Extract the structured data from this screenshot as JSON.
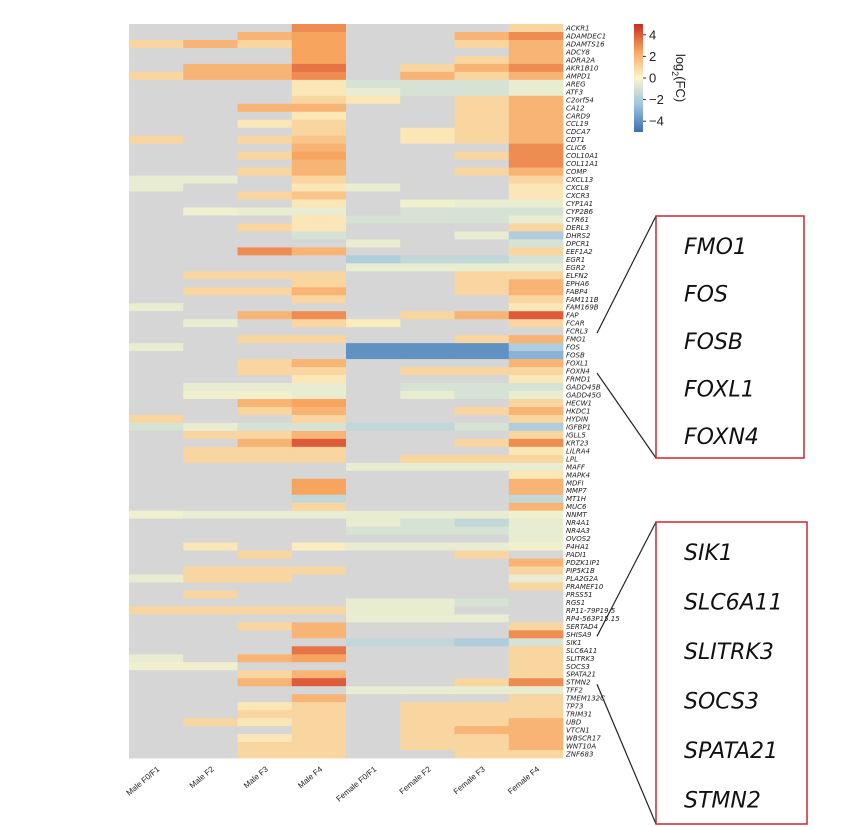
{
  "chart_data": {
    "type": "heatmap",
    "columns": [
      "Male F0/F1",
      "Male F2",
      "Male F3",
      "Male F4",
      "Female F0/F1",
      "Female F2",
      "Female F3",
      "Female F4"
    ],
    "rows": [
      "ACKR1",
      "ADAMDEC1",
      "ADAMTS16",
      "ADCY8",
      "ADRA2A",
      "AKR1B10",
      "AMPD1",
      "AREG",
      "ATF3",
      "C2orf54",
      "CA12",
      "CARD9",
      "CCL19",
      "CDCA7",
      "CDT1",
      "CLIC6",
      "COL10A1",
      "COL11A1",
      "COMP",
      "CXCL13",
      "CXCL8",
      "CXCR3",
      "CYP1A1",
      "CYP2B6",
      "CYR61",
      "DERL3",
      "DHRS2",
      "DPCR1",
      "EEF1A2",
      "EGR1",
      "EGR2",
      "ELFN2",
      "EPHA6",
      "FABP4",
      "FAM111B",
      "FAM169B",
      "FAP",
      "FCAR",
      "FCRL3",
      "FMO1",
      "FOS",
      "FOSB",
      "FOXL1",
      "FOXN4",
      "FRMD1",
      "GADD45B",
      "GADD45G",
      "HECW1",
      "HKDC1",
      "HYDIN",
      "IGFBP1",
      "IGLL5",
      "KRT23",
      "LILRA4",
      "LPL",
      "MAFF",
      "MAPK4",
      "MDFI",
      "MMP7",
      "MT1H",
      "MUC6",
      "NNMT",
      "NR4A1",
      "NR4A3",
      "OVOS2",
      "P4HA1",
      "PADI1",
      "PDZK1IP1",
      "PIP5K1B",
      "PLA2G2A",
      "PRAMEF10",
      "PRSS51",
      "RGS1",
      "RP11-79P19.5",
      "RP4-563P15.15",
      "SERTAD4",
      "SHISA9",
      "SIK1",
      "SLC6A11",
      "SLITRK3",
      "SOCS3",
      "SPATA21",
      "STMN2",
      "TFF2",
      "TMEM132C",
      "TP73",
      "TRIM31",
      "UBD",
      "VTCN1",
      "WBSCR17",
      "WNT10A",
      "ZNF683"
    ],
    "values": [
      [
        null,
        null,
        null,
        3,
        null,
        null,
        null,
        1
      ],
      [
        null,
        null,
        2,
        2.5,
        null,
        null,
        2,
        3
      ],
      [
        1,
        2,
        1,
        2.5,
        null,
        null,
        1,
        2
      ],
      [
        null,
        null,
        null,
        2.5,
        null,
        null,
        null,
        2
      ],
      [
        null,
        null,
        null,
        2.5,
        null,
        null,
        1,
        2
      ],
      [
        null,
        2,
        2,
        3.5,
        null,
        1,
        2,
        3
      ],
      [
        1,
        2,
        2,
        3,
        null,
        2,
        1,
        2
      ],
      [
        null,
        null,
        null,
        0.5,
        -1,
        -1,
        -1,
        -0.5
      ],
      [
        null,
        null,
        null,
        0.5,
        -0.5,
        -1,
        -1,
        -0.5
      ],
      [
        null,
        null,
        null,
        1,
        0.5,
        null,
        1,
        2
      ],
      [
        null,
        null,
        2,
        2,
        null,
        null,
        1,
        2
      ],
      [
        null,
        null,
        null,
        0.5,
        null,
        null,
        1,
        2
      ],
      [
        null,
        null,
        0.5,
        1,
        null,
        null,
        1,
        2
      ],
      [
        null,
        null,
        null,
        1,
        null,
        0.5,
        1,
        2
      ],
      [
        1,
        null,
        1,
        1.5,
        null,
        0.5,
        1,
        2
      ],
      [
        null,
        null,
        null,
        2,
        null,
        null,
        null,
        3
      ],
      [
        null,
        null,
        1,
        2.5,
        null,
        null,
        1,
        3
      ],
      [
        null,
        null,
        null,
        2,
        null,
        null,
        null,
        3
      ],
      [
        null,
        null,
        1,
        2,
        null,
        null,
        1,
        2
      ],
      [
        -0.5,
        -0.5,
        null,
        1,
        null,
        null,
        null,
        1
      ],
      [
        -0.5,
        null,
        null,
        0.5,
        -0.5,
        null,
        null,
        0.5
      ],
      [
        null,
        null,
        1,
        1.5,
        null,
        null,
        null,
        0.5
      ],
      [
        null,
        null,
        null,
        0.5,
        null,
        -0.3,
        -0.5,
        -0.5
      ],
      [
        null,
        -0.3,
        -0.5,
        -0.5,
        null,
        -1,
        -1,
        -1
      ],
      [
        null,
        null,
        null,
        0.5,
        -1,
        -1,
        -1,
        -0.5
      ],
      [
        null,
        null,
        1,
        0.5,
        null,
        null,
        null,
        1
      ],
      [
        null,
        null,
        null,
        -1,
        null,
        null,
        -0.5,
        -2
      ],
      [
        null,
        null,
        null,
        null,
        -0.5,
        null,
        null,
        -1
      ],
      [
        null,
        null,
        3,
        2,
        null,
        null,
        null,
        1
      ],
      [
        null,
        null,
        null,
        null,
        -2,
        -1.5,
        -1.5,
        -1
      ],
      [
        null,
        null,
        null,
        null,
        -0.5,
        -0.5,
        -0.5,
        -0.5
      ],
      [
        null,
        1,
        1,
        1,
        null,
        null,
        1,
        1
      ],
      [
        null,
        null,
        null,
        1,
        null,
        null,
        1,
        2
      ],
      [
        null,
        1,
        1,
        2,
        null,
        null,
        1,
        2
      ],
      [
        null,
        null,
        null,
        1,
        null,
        null,
        null,
        1
      ],
      [
        -0.5,
        null,
        null,
        null,
        null,
        null,
        null,
        0.5
      ],
      [
        null,
        null,
        2,
        3,
        null,
        1,
        2,
        4
      ],
      [
        null,
        -0.5,
        null,
        1,
        0.3,
        null,
        null,
        1
      ],
      [
        null,
        null,
        null,
        null,
        null,
        null,
        null,
        null
      ],
      [
        null,
        null,
        1,
        1,
        null,
        null,
        1,
        2
      ],
      [
        -0.5,
        null,
        null,
        null,
        -4,
        -4,
        -4,
        -2
      ],
      [
        null,
        null,
        null,
        null,
        -4,
        -4,
        -4,
        -3
      ],
      [
        null,
        null,
        1,
        2,
        null,
        null,
        null,
        2
      ],
      [
        null,
        null,
        1,
        1,
        null,
        1,
        1,
        1
      ],
      [
        null,
        null,
        null,
        0.5,
        null,
        null,
        null,
        0.5
      ],
      [
        null,
        -0.5,
        -0.5,
        -0.5,
        null,
        -1,
        -1,
        -1
      ],
      [
        null,
        -0.3,
        -0.3,
        -0.5,
        null,
        -0.5,
        -1,
        -0.5
      ],
      [
        null,
        null,
        2,
        2.5,
        null,
        null,
        null,
        1
      ],
      [
        null,
        null,
        1,
        2,
        null,
        null,
        1,
        2
      ],
      [
        1,
        null,
        null,
        1,
        null,
        null,
        null,
        1
      ],
      [
        -1,
        -0.5,
        -1,
        -1,
        -1.5,
        -1.5,
        -1,
        -2
      ],
      [
        null,
        1,
        1,
        2,
        null,
        null,
        null,
        1
      ],
      [
        null,
        null,
        2,
        4,
        null,
        null,
        1,
        3
      ],
      [
        null,
        1,
        1,
        1,
        null,
        null,
        null,
        0.5
      ],
      [
        null,
        1,
        1,
        1,
        null,
        1,
        1,
        1
      ],
      [
        null,
        null,
        null,
        null,
        -0.5,
        -0.5,
        -0.5,
        -0.5
      ],
      [
        null,
        null,
        null,
        null,
        null,
        null,
        null,
        0.5
      ],
      [
        null,
        null,
        null,
        2.5,
        null,
        null,
        null,
        2
      ],
      [
        null,
        null,
        null,
        2.5,
        null,
        null,
        null,
        2
      ],
      [
        null,
        null,
        null,
        -1.5,
        null,
        null,
        null,
        -1.5
      ],
      [
        null,
        null,
        null,
        1,
        null,
        null,
        null,
        2
      ],
      [
        -0.3,
        -0.5,
        -0.5,
        -0.5,
        -0.5,
        -0.5,
        -0.5,
        -0.3
      ],
      [
        null,
        null,
        null,
        null,
        -0.5,
        -1,
        -1.5,
        -0.5
      ],
      [
        null,
        null,
        null,
        null,
        -1,
        -1,
        -1,
        -0.5
      ],
      [
        null,
        null,
        null,
        null,
        null,
        null,
        null,
        -0.5
      ],
      [
        null,
        0.5,
        null,
        0.3,
        -0.5,
        -0.5,
        -0.5,
        -0.3
      ],
      [
        null,
        null,
        1,
        null,
        null,
        null,
        1,
        null
      ],
      [
        null,
        null,
        null,
        null,
        null,
        null,
        null,
        2
      ],
      [
        null,
        1,
        1,
        1,
        null,
        null,
        null,
        1
      ],
      [
        -0.5,
        1,
        1,
        null,
        null,
        null,
        null,
        -0.5
      ],
      [
        null,
        null,
        null,
        null,
        null,
        null,
        null,
        1
      ],
      [
        null,
        1,
        null,
        null,
        null,
        null,
        null,
        null
      ],
      [
        null,
        null,
        null,
        null,
        -0.5,
        -0.5,
        -1,
        null
      ],
      [
        1,
        1,
        1,
        1,
        -0.5,
        -0.5,
        null,
        null
      ],
      [
        null,
        null,
        null,
        null,
        -0.5,
        -0.5,
        -0.5,
        null
      ],
      [
        null,
        null,
        1,
        2,
        null,
        null,
        null,
        1
      ],
      [
        null,
        null,
        null,
        2,
        null,
        null,
        null,
        3
      ],
      [
        null,
        null,
        null,
        null,
        -1.5,
        -1.5,
        -2,
        -1
      ],
      [
        null,
        null,
        null,
        3.5,
        null,
        null,
        null,
        1
      ],
      [
        -0.5,
        null,
        2,
        2.5,
        null,
        null,
        null,
        1
      ],
      [
        -0.3,
        -0.3,
        null,
        null,
        null,
        null,
        null,
        1
      ],
      [
        null,
        null,
        1,
        2,
        null,
        null,
        null,
        1
      ],
      [
        null,
        null,
        2,
        4,
        null,
        null,
        1,
        3
      ],
      [
        null,
        null,
        null,
        null,
        -0.5,
        -0.5,
        -0.5,
        -0.5
      ],
      [
        null,
        null,
        null,
        2,
        null,
        null,
        null,
        1
      ],
      [
        null,
        null,
        0.5,
        1,
        null,
        1,
        1,
        1
      ],
      [
        null,
        null,
        1,
        1,
        null,
        1,
        1,
        1
      ],
      [
        null,
        1,
        0.5,
        1,
        null,
        1,
        1,
        2
      ],
      [
        null,
        null,
        null,
        1,
        null,
        1,
        2,
        2
      ],
      [
        null,
        null,
        0.5,
        1,
        null,
        1,
        1,
        2
      ],
      [
        null,
        null,
        1,
        1,
        null,
        1,
        1,
        2
      ],
      [
        null,
        null,
        1,
        1,
        null,
        null,
        1,
        1
      ]
    ],
    "missing_color": "#d6d6d6",
    "colorbar": {
      "label": "log2(FC)",
      "label_base": "log",
      "label_sub": "2",
      "label_tail": "(FC)",
      "min": -5,
      "max": 5,
      "ticks": [
        "4",
        "2",
        "0",
        "−2",
        "−4"
      ],
      "tick_values": [
        4,
        2,
        0,
        -2,
        -4
      ]
    },
    "callouts": [
      {
        "genes": [
          "FMO1",
          "FOS",
          "FOSB",
          "FOXL1",
          "FOXN4"
        ]
      },
      {
        "genes": [
          "SIK1",
          "SLC6A11",
          "SLITRK3",
          "SOCS3",
          "SPATA21",
          "STMN2"
        ]
      }
    ]
  }
}
